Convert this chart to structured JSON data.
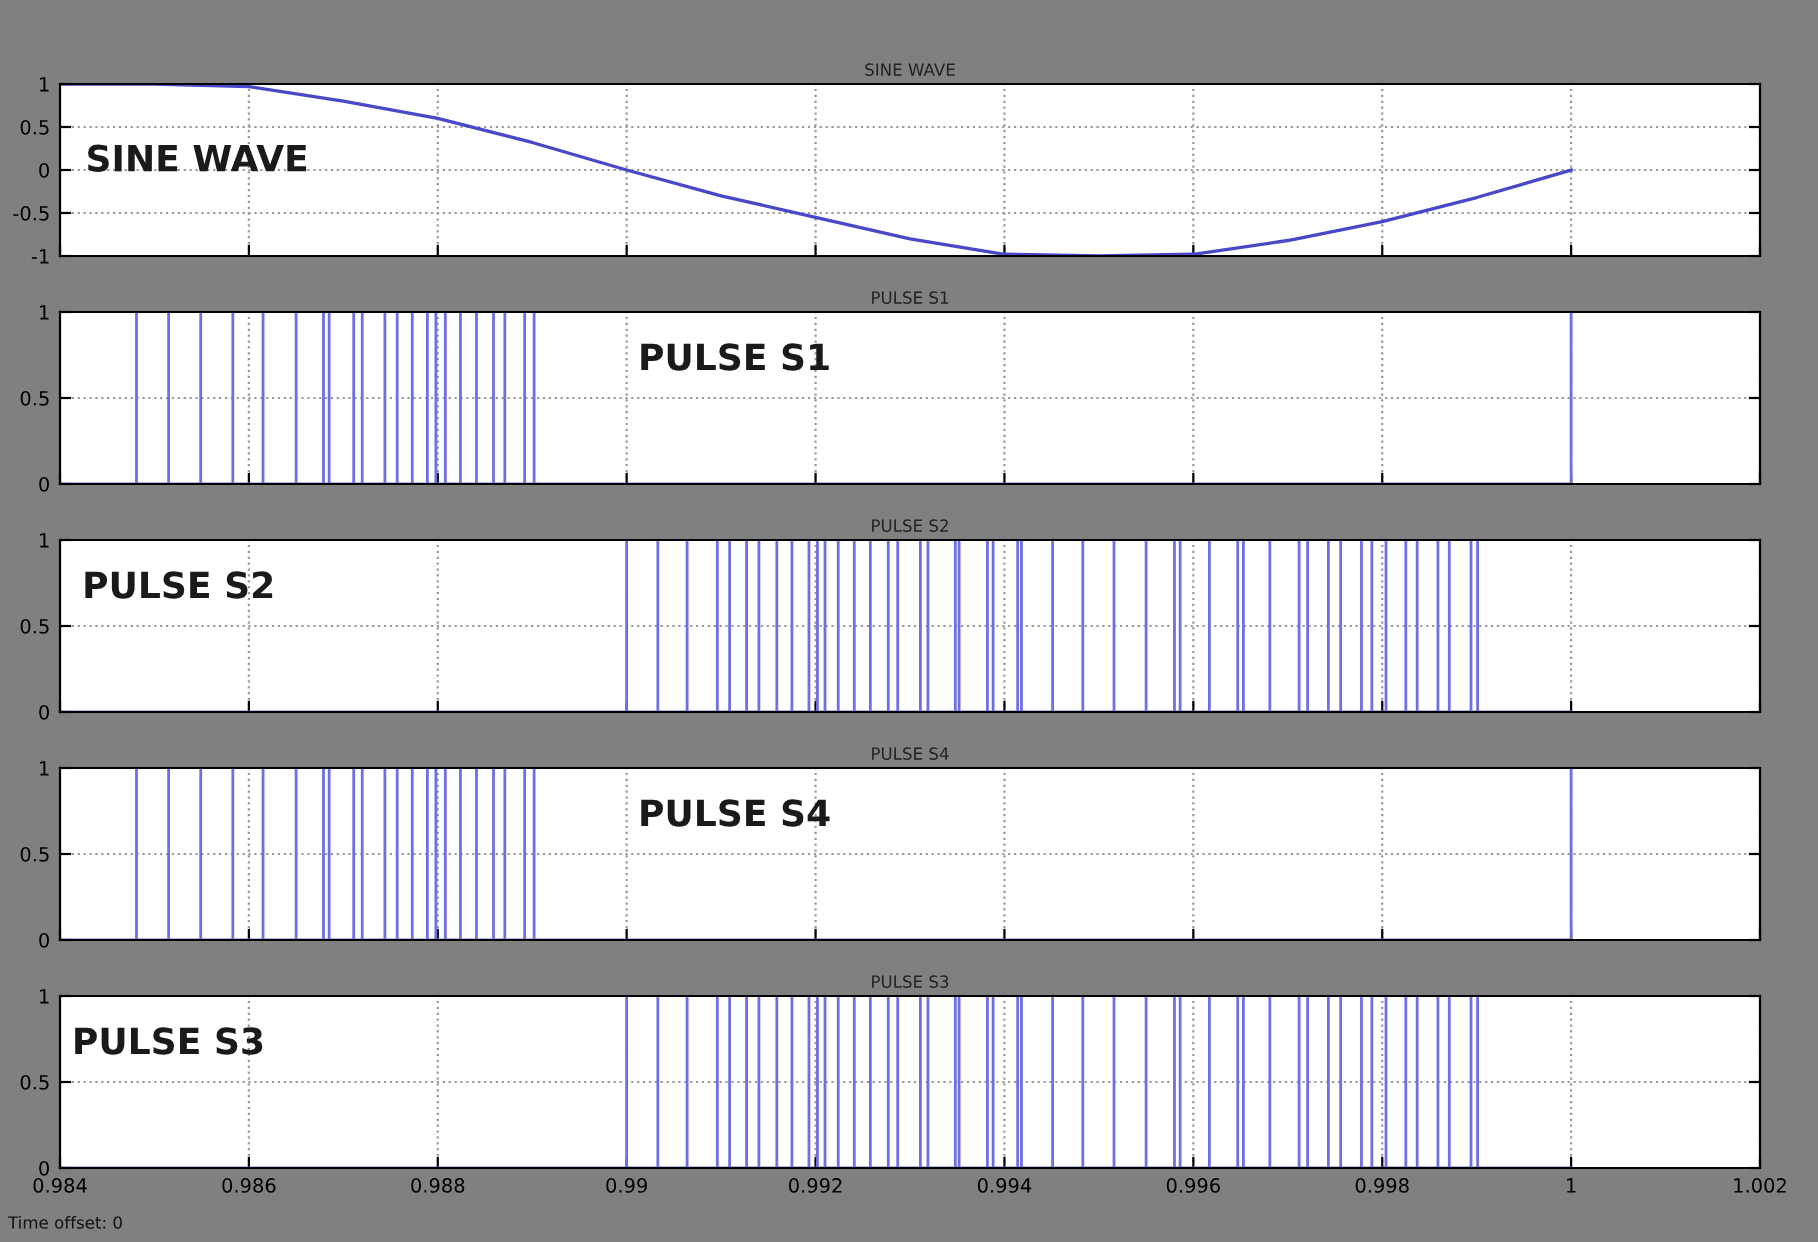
{
  "chart_data": [
    {
      "type": "line",
      "title": "SINE WAVE",
      "annotations": [
        "SINE WAVE"
      ],
      "series": [
        {
          "color": "#4848c8",
          "x": [
            0.984,
            0.985,
            0.986,
            0.987,
            0.988,
            0.989,
            0.99,
            0.991,
            0.992,
            0.993,
            0.994,
            0.995,
            0.996,
            0.997,
            0.998,
            0.999,
            1.0
          ],
          "values": [
            1,
            1,
            0.97,
            0.8,
            0.6,
            0.32,
            0,
            -0.3,
            -0.55,
            -0.8,
            -0.98,
            -1,
            -0.98,
            -0.82,
            -0.6,
            -0.32,
            0
          ]
        }
      ],
      "xlim": [
        0.984,
        1.002
      ],
      "xticks": [
        0.984,
        0.986,
        0.988,
        0.99,
        0.992,
        0.994,
        0.996,
        0.998,
        1,
        1.002
      ],
      "ylim": [
        -1,
        1
      ],
      "yticks": [
        -1,
        -0.5,
        0,
        0.5,
        1
      ],
      "grid": true,
      "tick_labels": "y"
    },
    {
      "type": "step",
      "title": "PULSE S1",
      "annotations": [
        "PULSE S1"
      ],
      "series": [
        {
          "color": "#6e6ee6",
          "x": [
            0.984,
            0.98481,
            0.98481,
            0.98515,
            0.98515,
            0.98549,
            0.98549,
            0.98583,
            0.98583,
            0.98615,
            0.98615,
            0.9865,
            0.9865,
            0.98679,
            0.98679,
            0.98685,
            0.98685,
            0.98711,
            0.98711,
            0.9872,
            0.9872,
            0.98744,
            0.98744,
            0.98757,
            0.98757,
            0.98773,
            0.98773,
            0.98789,
            0.98789,
            0.98798,
            0.98798,
            0.98808,
            0.98808,
            0.98824,
            0.98824,
            0.98841,
            0.98841,
            0.98859,
            0.98859,
            0.98871,
            0.98871,
            0.98892,
            0.98892,
            0.98902,
            0.98902,
            1.0,
            1.0
          ],
          "values": [
            0,
            1,
            0,
            1,
            0,
            1,
            0,
            1,
            0,
            1,
            0,
            1,
            0,
            1,
            0,
            1,
            0,
            1,
            0,
            1,
            0,
            1,
            0,
            1,
            0,
            1,
            0,
            1,
            0,
            1,
            0,
            1,
            0,
            1,
            0,
            1,
            0,
            1,
            0,
            1,
            0,
            1,
            0,
            1,
            0,
            0,
            1
          ]
        }
      ],
      "xlim": [
        0.984,
        1.002
      ],
      "xticks": [
        0.984,
        0.986,
        0.988,
        0.99,
        0.992,
        0.994,
        0.996,
        0.998,
        1,
        1.002
      ],
      "ylim": [
        0,
        1
      ],
      "yticks": [
        0,
        0.5,
        1
      ],
      "grid": true,
      "tick_labels": "y"
    },
    {
      "type": "step",
      "title": "PULSE S2",
      "annotations": [
        "PULSE S2"
      ],
      "series": [
        {
          "color": "#6e6ee6",
          "x": [
            0.984,
            0.99,
            0.99,
            0.99033,
            0.99033,
            0.99064,
            0.99064,
            0.99096,
            0.99096,
            0.99109,
            0.99109,
            0.99127,
            0.99127,
            0.9914,
            0.9914,
            0.99159,
            0.99159,
            0.99175,
            0.99175,
            0.99193,
            0.99193,
            0.99202,
            0.99202,
            0.9921,
            0.9921,
            0.99224,
            0.99224,
            0.99241,
            0.99241,
            0.99258,
            0.99258,
            0.99277,
            0.99277,
            0.99287,
            0.99287,
            0.99311,
            0.99311,
            0.99319,
            0.99319,
            0.99348,
            0.99348,
            0.99352,
            0.99352,
            0.99382,
            0.99382,
            0.99388,
            0.99388,
            0.99414,
            0.99414,
            0.99418,
            0.99418,
            0.99451,
            0.99451,
            0.99483,
            0.99483,
            0.99516,
            0.99516,
            0.9955,
            0.9955,
            0.9958,
            0.9958,
            0.99586,
            0.99586,
            0.99617,
            0.99617,
            0.99647,
            0.99647,
            0.99653,
            0.99653,
            0.99681,
            0.99681,
            0.99712,
            0.99712,
            0.99721,
            0.99721,
            0.99743,
            0.99743,
            0.99756,
            0.99756,
            0.99778,
            0.99778,
            0.99789,
            0.99789,
            0.99804,
            0.99804,
            0.99825,
            0.99825,
            0.99837,
            0.99837,
            0.99859,
            0.99859,
            0.99871,
            0.99871,
            0.99894,
            0.99894,
            0.99901,
            0.99901,
            1.0
          ],
          "values": [
            0,
            1,
            0,
            1,
            0,
            1,
            0,
            1,
            0,
            1,
            0,
            1,
            0,
            1,
            0,
            1,
            0,
            1,
            0,
            1,
            0,
            1,
            0,
            1,
            0,
            1,
            0,
            1,
            0,
            1,
            0,
            1,
            0,
            1,
            0,
            1,
            0,
            1,
            0,
            1,
            0,
            1,
            0,
            1,
            0,
            1,
            0,
            1,
            0,
            1,
            0,
            1,
            0,
            1,
            0,
            1,
            0,
            1,
            0,
            1,
            0,
            1,
            0,
            1,
            0,
            1,
            0,
            1,
            0,
            1,
            0,
            1,
            0,
            1,
            0,
            1,
            0,
            1,
            0,
            1,
            0,
            1,
            0,
            1,
            0,
            1,
            0,
            1,
            0,
            1,
            0,
            1,
            0,
            1,
            0,
            1,
            0,
            0
          ]
        }
      ],
      "xlim": [
        0.984,
        1.002
      ],
      "xticks": [
        0.984,
        0.986,
        0.988,
        0.99,
        0.992,
        0.994,
        0.996,
        0.998,
        1,
        1.002
      ],
      "ylim": [
        0,
        1
      ],
      "yticks": [
        0,
        0.5,
        1
      ],
      "grid": true,
      "tick_labels": "y"
    },
    {
      "type": "step",
      "title": "PULSE S4",
      "annotations": [
        "PULSE S4"
      ],
      "series": [
        {
          "color": "#6e6ee6",
          "x": [
            0.984,
            0.98481,
            0.98481,
            0.98515,
            0.98515,
            0.98549,
            0.98549,
            0.98583,
            0.98583,
            0.98615,
            0.98615,
            0.9865,
            0.9865,
            0.98679,
            0.98679,
            0.98685,
            0.98685,
            0.98711,
            0.98711,
            0.9872,
            0.9872,
            0.98744,
            0.98744,
            0.98757,
            0.98757,
            0.98773,
            0.98773,
            0.98789,
            0.98789,
            0.98798,
            0.98798,
            0.98808,
            0.98808,
            0.98824,
            0.98824,
            0.98841,
            0.98841,
            0.98859,
            0.98859,
            0.98871,
            0.98871,
            0.98892,
            0.98892,
            0.98902,
            0.98902,
            1.0,
            1.0
          ],
          "values": [
            0,
            1,
            0,
            1,
            0,
            1,
            0,
            1,
            0,
            1,
            0,
            1,
            0,
            1,
            0,
            1,
            0,
            1,
            0,
            1,
            0,
            1,
            0,
            1,
            0,
            1,
            0,
            1,
            0,
            1,
            0,
            1,
            0,
            1,
            0,
            1,
            0,
            1,
            0,
            1,
            0,
            1,
            0,
            1,
            0,
            0,
            1
          ]
        }
      ],
      "xlim": [
        0.984,
        1.002
      ],
      "xticks": [
        0.984,
        0.986,
        0.988,
        0.99,
        0.992,
        0.994,
        0.996,
        0.998,
        1,
        1.002
      ],
      "ylim": [
        0,
        1
      ],
      "yticks": [
        0,
        0.5,
        1
      ],
      "grid": true,
      "tick_labels": "y"
    },
    {
      "type": "step",
      "title": "PULSE S3",
      "annotations": [
        "PULSE S3",
        "Time offset: 0"
      ],
      "series": [
        {
          "color": "#6e6ee6",
          "x": [
            0.984,
            0.99,
            0.99,
            0.99033,
            0.99033,
            0.99064,
            0.99064,
            0.99096,
            0.99096,
            0.99109,
            0.99109,
            0.99127,
            0.99127,
            0.9914,
            0.9914,
            0.99159,
            0.99159,
            0.99175,
            0.99175,
            0.99193,
            0.99193,
            0.99202,
            0.99202,
            0.9921,
            0.9921,
            0.99224,
            0.99224,
            0.99241,
            0.99241,
            0.99258,
            0.99258,
            0.99277,
            0.99277,
            0.99287,
            0.99287,
            0.99311,
            0.99311,
            0.99319,
            0.99319,
            0.99348,
            0.99348,
            0.99352,
            0.99352,
            0.99382,
            0.99382,
            0.99388,
            0.99388,
            0.99414,
            0.99414,
            0.99418,
            0.99418,
            0.99451,
            0.99451,
            0.99483,
            0.99483,
            0.99516,
            0.99516,
            0.9955,
            0.9955,
            0.9958,
            0.9958,
            0.99586,
            0.99586,
            0.99617,
            0.99617,
            0.99647,
            0.99647,
            0.99653,
            0.99653,
            0.99681,
            0.99681,
            0.99712,
            0.99712,
            0.99721,
            0.99721,
            0.99743,
            0.99743,
            0.99756,
            0.99756,
            0.99778,
            0.99778,
            0.99789,
            0.99789,
            0.99804,
            0.99804,
            0.99825,
            0.99825,
            0.99837,
            0.99837,
            0.99859,
            0.99859,
            0.99871,
            0.99871,
            0.99894,
            0.99894,
            0.99901,
            0.99901,
            1.0
          ],
          "values": [
            0,
            1,
            0,
            1,
            0,
            1,
            0,
            1,
            0,
            1,
            0,
            1,
            0,
            1,
            0,
            1,
            0,
            1,
            0,
            1,
            0,
            1,
            0,
            1,
            0,
            1,
            0,
            1,
            0,
            1,
            0,
            1,
            0,
            1,
            0,
            1,
            0,
            1,
            0,
            1,
            0,
            1,
            0,
            1,
            0,
            1,
            0,
            1,
            0,
            1,
            0,
            1,
            0,
            1,
            0,
            1,
            0,
            1,
            0,
            1,
            0,
            1,
            0,
            1,
            0,
            1,
            0,
            1,
            0,
            1,
            0,
            1,
            0,
            1,
            0,
            1,
            0,
            1,
            0,
            1,
            0,
            1,
            0,
            1,
            0,
            1,
            0,
            1,
            0,
            1,
            0,
            1,
            0,
            1,
            0,
            1,
            0,
            0
          ]
        }
      ],
      "xlim": [
        0.984,
        1.002
      ],
      "xticks": [
        0.984,
        0.986,
        0.988,
        0.99,
        0.992,
        0.994,
        0.996,
        0.998,
        1,
        1.002
      ],
      "ylim": [
        0,
        1
      ],
      "yticks": [
        0,
        0.5,
        1
      ],
      "grid": true
    }
  ]
}
